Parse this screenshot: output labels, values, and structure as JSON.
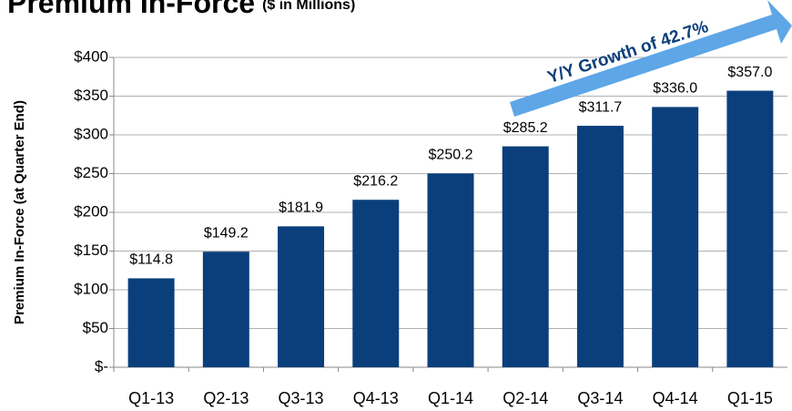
{
  "chart_data": {
    "type": "bar",
    "title": "Premium In-Force",
    "subtitle": "($ in Millions)",
    "y_label": "Premium In-Force (at Quarter End)",
    "annotation": "Y/Y Growth of 42.7%",
    "categories": [
      "Q1-13",
      "Q2-13",
      "Q3-13",
      "Q4-13",
      "Q1-14",
      "Q2-14",
      "Q3-14",
      "Q4-14",
      "Q1-15"
    ],
    "values": [
      114.8,
      149.2,
      181.9,
      216.2,
      250.2,
      285.2,
      311.7,
      336.0,
      357.0
    ],
    "value_labels": [
      "$114.8",
      "$149.2",
      "$181.9",
      "$216.2",
      "$250.2",
      "$285.2",
      "$311.7",
      "$336.0",
      "$357.0"
    ],
    "color": "#0b3f7c",
    "ylim": [
      0,
      400
    ],
    "yticks": [
      {
        "value": 0,
        "label": "$-"
      },
      {
        "value": 50,
        "label": "$50"
      },
      {
        "value": 100,
        "label": "$100"
      },
      {
        "value": 150,
        "label": "$150"
      },
      {
        "value": 200,
        "label": "$200"
      },
      {
        "value": 250,
        "label": "$250"
      },
      {
        "value": 300,
        "label": "$300"
      },
      {
        "value": 350,
        "label": "$350"
      },
      {
        "value": 400,
        "label": "$400"
      }
    ],
    "grid": true
  }
}
